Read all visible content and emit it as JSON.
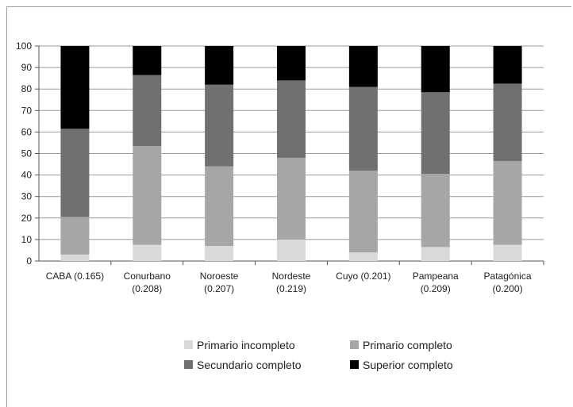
{
  "chart_data": {
    "type": "bar",
    "stacked": true,
    "title": "",
    "xlabel": "",
    "ylabel": "",
    "ylim": [
      0,
      100
    ],
    "yticks": [
      0,
      10,
      20,
      30,
      40,
      50,
      60,
      70,
      80,
      90,
      100
    ],
    "grid": true,
    "legend_position": "bottom",
    "categories": [
      [
        "CABA (0.165)"
      ],
      [
        "Conurbano",
        "(0.208)"
      ],
      [
        "Noroeste",
        "(0.207)"
      ],
      [
        "Nordeste",
        "(0.219)"
      ],
      [
        "Cuyo (0.201)"
      ],
      [
        "Pampeana",
        "(0.209)"
      ],
      [
        "Patagónica",
        "(0.200)"
      ]
    ],
    "series": [
      {
        "name": "Primario incompleto",
        "color": "#d9d9d9",
        "values": [
          3,
          7.5,
          7,
          10,
          4,
          6.5,
          7.5
        ]
      },
      {
        "name": "Primario completo",
        "color": "#a6a6a6",
        "values": [
          17.5,
          46,
          37,
          38,
          38,
          34,
          39
        ]
      },
      {
        "name": "Secundario completo",
        "color": "#707070",
        "values": [
          41,
          33,
          38,
          36,
          39,
          38,
          36
        ]
      },
      {
        "name": "Superior completo",
        "color": "#000000",
        "values": [
          38.5,
          13.5,
          18,
          16,
          19,
          21.5,
          17.5
        ]
      }
    ]
  }
}
